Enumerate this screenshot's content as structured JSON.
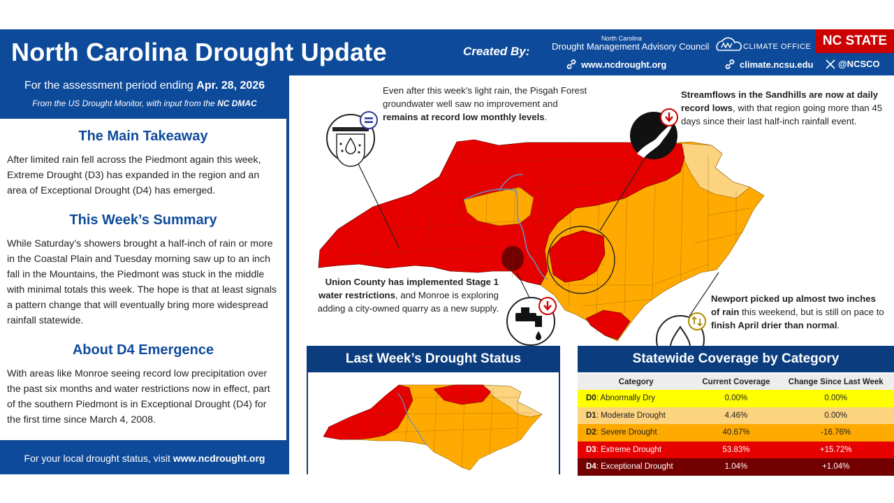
{
  "header": {
    "title": "North Carolina Drought Update",
    "created_by": "Created By:",
    "dmac_small": "North Carolina",
    "dmac_name": "Drought Management Advisory Council",
    "link_ncdrought": "www.ncdrought.org",
    "link_nccs": "climate.ncsu.edu",
    "x_handle": "@NCSCO",
    "climate_office_logo_text": "CLIMATE OFFICE",
    "ncstate": "NC STATE",
    "colors": {
      "banner": "#0e4a9a",
      "ncstate": "#cc0000"
    }
  },
  "left": {
    "period_prefix": "For the assessment period ending",
    "period_date": "Apr. 28, 2026",
    "source_prefix": "From the US Drought Monitor, with input from the",
    "source_org": "NC DMAC",
    "takeaway_title": "The Main Takeaway",
    "takeaway_body": "After limited rain fell across the Piedmont again this week, Extreme Drought (D3) has expanded in the region and an area of Exceptional Drought (D4) has emerged.",
    "summary_title": "This Week’s Summary",
    "summary_body": "While Saturday’s showers brought a half-inch of rain or more in the Coastal Plain and Tuesday morning saw up to an inch fall in the Mountains, the Piedmont was stuck in the middle with minimal totals this week. The hope is that at least signals a pattern change that will eventually bring more widespread rainfall statewide.",
    "d4_title": "About D4 Emergence",
    "d4_body": "With areas like Monroe seeing record low precipitation over the past six months and water restrictions now in effect, part of the southern Piedmont is in Exceptional Drought (D4) for the first time since March 4, 2008.",
    "footer_prefix": "For your local drought status, visit",
    "footer_link": "www.ncdrought.org"
  },
  "callouts": {
    "pisgah_a": "Even after this week’s light rain, the Pisgah Forest groundwater well saw no improvement and",
    "pisgah_b": "remains at record low monthly levels",
    "pisgah_c": ".",
    "sandhills_a": "Streamflows in the Sandhills are now at daily record lows",
    "sandhills_b": ", with that region going more than 45 days since their last half-inch rainfall event.",
    "union_a": "Union County has implemented Stage 1 water restrictions",
    "union_b": ", and Monroe is exploring adding a city-owned quarry as a new supply.",
    "newport_a": "Newport picked up almost two inches of rain",
    "newport_b": " this weekend, but is still on pace to",
    "newport_c": "finish April drier than normal",
    "newport_d": "."
  },
  "last_week": {
    "title": "Last Week’s Drought Status"
  },
  "coverage": {
    "title": "Statewide Coverage by Category",
    "headers": [
      "Category",
      "Current Coverage",
      "Change Since Last Week"
    ],
    "rows": [
      {
        "code": "D0",
        "label": ": Abnormally Dry",
        "current": "0.00%",
        "change": "0.00%",
        "bg": "#ffff00",
        "fg": "#222222"
      },
      {
        "code": "D1",
        "label": ": Moderate Drought",
        "current": "4.46%",
        "change": "0.00%",
        "bg": "#fcd37f",
        "fg": "#222222"
      },
      {
        "code": "D2",
        "label": ": Severe Drought",
        "current": "40.67%",
        "change": "-16.76%",
        "bg": "#ffaa00",
        "fg": "#222222"
      },
      {
        "code": "D3",
        "label": ": Extreme Drought",
        "current": "53.83%",
        "change": "+15.72%",
        "bg": "#e60000",
        "fg": "#ffffff"
      },
      {
        "code": "D4",
        "label": ": Exceptional Drought",
        "current": "1.04%",
        "change": "+1.04%",
        "bg": "#730000",
        "fg": "#ffffff"
      }
    ]
  },
  "map_colors": {
    "d1": "#fcd37f",
    "d2": "#ffaa00",
    "d3": "#e60000",
    "d4": "#730000"
  }
}
